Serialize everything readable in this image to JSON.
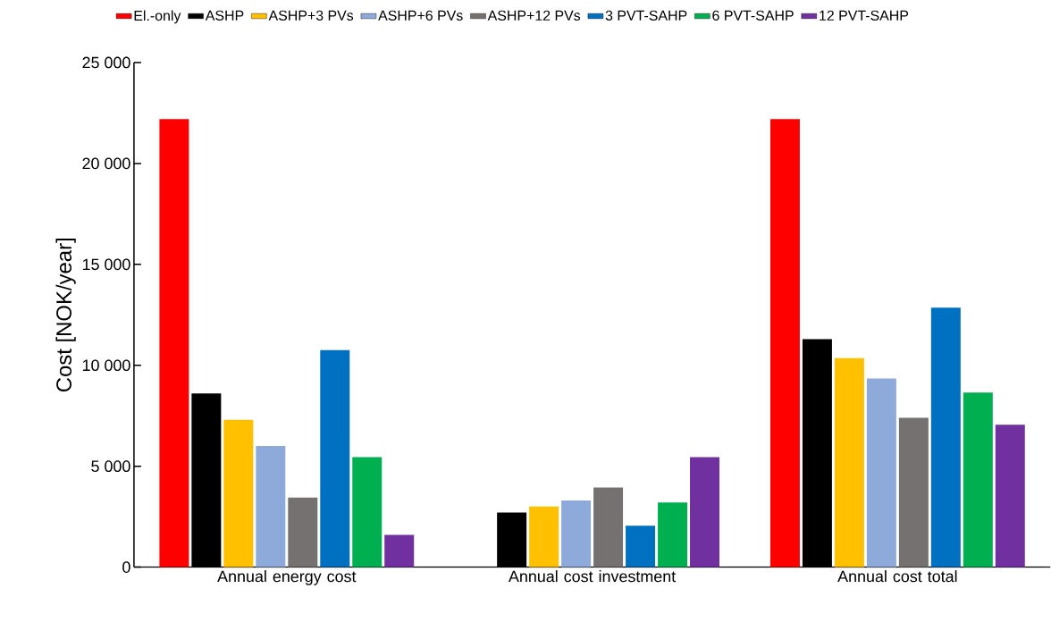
{
  "chart_data": {
    "type": "bar",
    "categories": [
      "Annual energy cost",
      "Annual cost investment",
      "Annual cost total"
    ],
    "ylabel": "Cost [NOK/year]",
    "ylim": [
      0,
      25000
    ],
    "yticks": [
      0,
      {
        "value": 5000,
        "label": "5 000"
      },
      {
        "value": 10000,
        "label": "10 000"
      },
      {
        "value": 15000,
        "label": "15 000"
      },
      {
        "value": 20000,
        "label": "20 000"
      },
      {
        "value": 25000,
        "label": "25 000"
      }
    ],
    "legend": "top",
    "series": [
      {
        "name": "El.-only",
        "color": "#ff0000",
        "values": [
          22200,
          null,
          22200
        ]
      },
      {
        "name": "ASHP",
        "color": "#000000",
        "values": [
          8600,
          2700,
          11300
        ]
      },
      {
        "name": "ASHP+3 PVs",
        "color": "#ffc000",
        "values": [
          7300,
          3000,
          10350
        ]
      },
      {
        "name": "ASHP+6 PVs",
        "color": "#8eaadb",
        "values": [
          6000,
          3300,
          9350
        ]
      },
      {
        "name": "ASHP+12 PVs",
        "color": "#767171",
        "values": [
          3450,
          3950,
          7400
        ]
      },
      {
        "name": "3 PVT-SAHP",
        "color": "#0070c0",
        "values": [
          10750,
          2050,
          12850
        ]
      },
      {
        "name": "6 PVT-SAHP",
        "color": "#00b050",
        "values": [
          5450,
          3200,
          8650
        ]
      },
      {
        "name": "12 PVT-SAHP",
        "color": "#7030a0",
        "values": [
          1600,
          5450,
          7050
        ]
      }
    ]
  }
}
